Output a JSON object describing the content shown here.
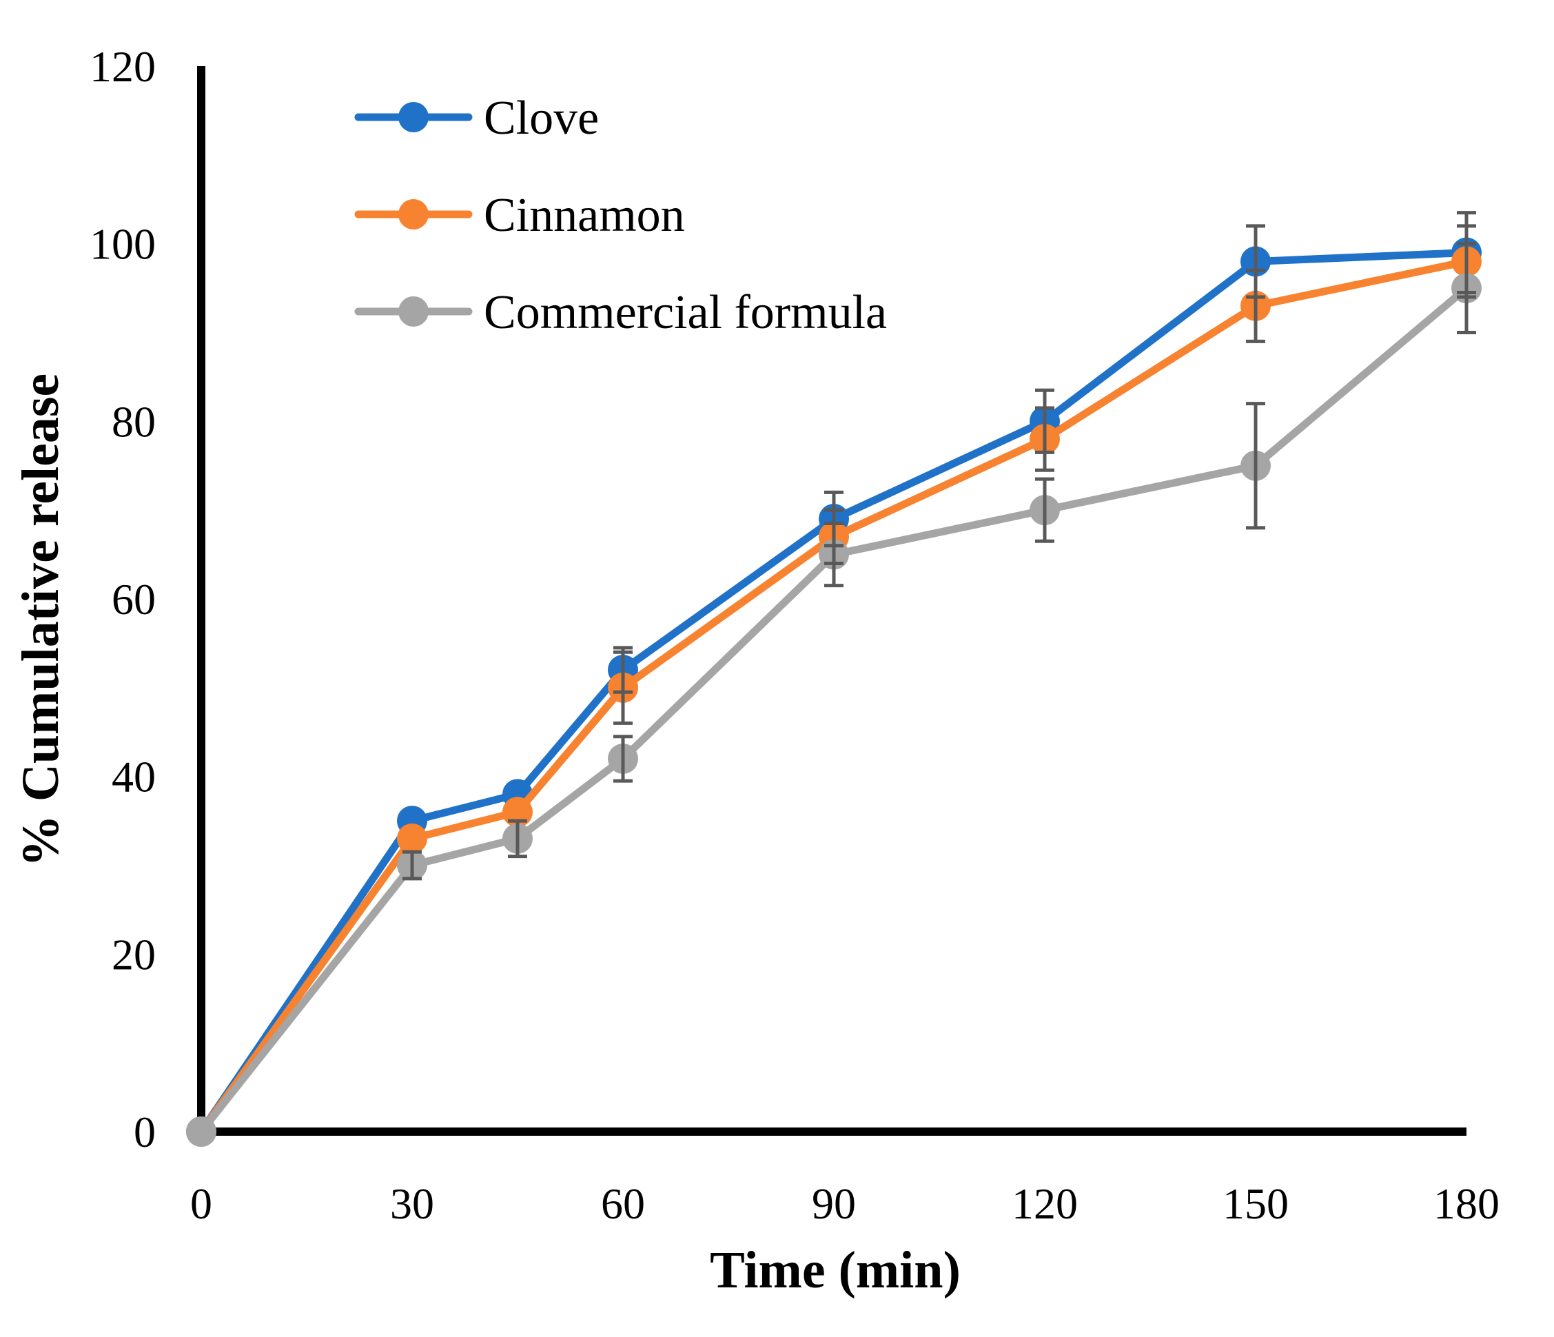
{
  "chart_data": {
    "type": "line",
    "title": "",
    "xlabel": "Time (min)",
    "ylabel": "% Cumulative release",
    "x": [
      0,
      30,
      45,
      60,
      90,
      120,
      150,
      180
    ],
    "xticks": [
      0,
      30,
      60,
      90,
      120,
      150,
      180
    ],
    "yticks": [
      0,
      20,
      40,
      60,
      80,
      100,
      120
    ],
    "xlim": [
      0,
      180
    ],
    "ylim": [
      0,
      120
    ],
    "grid": false,
    "legend_position": "top-left",
    "series": [
      {
        "name": "Clove",
        "color": "#1f72c8",
        "values": [
          0,
          35,
          38,
          52,
          69,
          80,
          98,
          99
        ],
        "error": [
          0,
          0,
          0,
          2.5,
          3,
          3.5,
          4,
          4.5
        ]
      },
      {
        "name": "Cinnamon",
        "color": "#f7822f",
        "values": [
          0,
          33,
          36,
          50,
          67,
          78,
          93,
          98
        ],
        "error": [
          0,
          0,
          0,
          4,
          3,
          3.5,
          4,
          4
        ]
      },
      {
        "name": "Commercial formula",
        "color": "#a5a5a5",
        "values": [
          0,
          30,
          33,
          42,
          65,
          70,
          75,
          95
        ],
        "error": [
          0,
          1.5,
          2,
          2.5,
          3.5,
          3.5,
          7,
          5
        ]
      }
    ],
    "error_bar_color": "#595959"
  }
}
